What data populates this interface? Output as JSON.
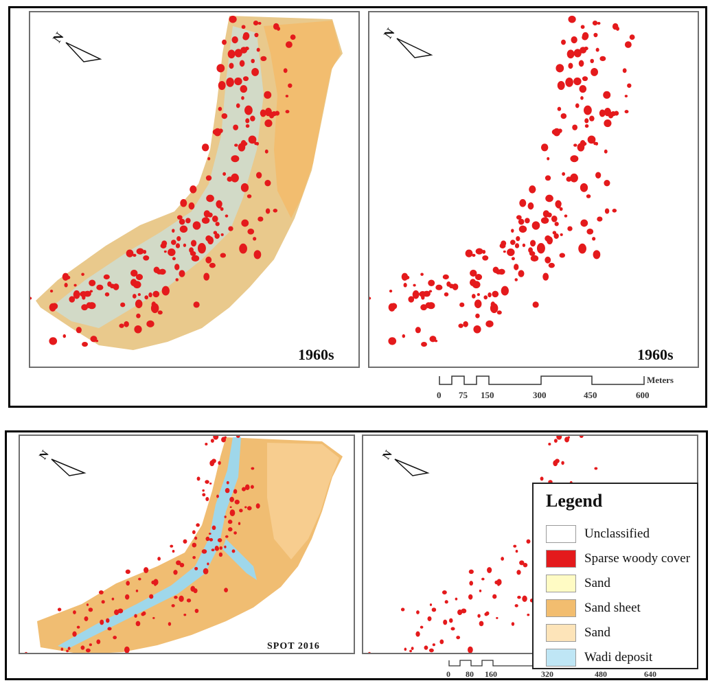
{
  "colors": {
    "sparse_woody": "#e41a1c",
    "sand_yellow": "#fffbc4",
    "sand_sheet": "#f2bd6f",
    "sand_light": "#fde4b9",
    "wadi": "#bfe6f5",
    "unclassified": "#ffffff"
  },
  "panels": [
    {
      "label": "1960s"
    },
    {
      "label": "1960s"
    },
    {
      "label": "SPOT 2016"
    },
    {
      "label": ""
    }
  ],
  "north_label": "N",
  "scalebar_top": {
    "unit": "Meters",
    "ticks": [
      "0",
      "75",
      "150",
      "300",
      "450",
      "600"
    ]
  },
  "scalebar_bottom": {
    "ticks": [
      "0",
      "80",
      "160",
      "320",
      "480",
      "640"
    ]
  },
  "legend": {
    "title": "Legend",
    "items": [
      {
        "label": "Unclassified",
        "color": "#ffffff"
      },
      {
        "label": "Sparse woody cover",
        "color": "#e41a1c"
      },
      {
        "label": "Sand",
        "color": "#fffbc4"
      },
      {
        "label": "Sand sheet",
        "color": "#f2bd6f"
      },
      {
        "label": "Sand",
        "color": "#fde4b9"
      },
      {
        "label": "Wadi deposit",
        "color": "#bfe6f5"
      }
    ]
  }
}
